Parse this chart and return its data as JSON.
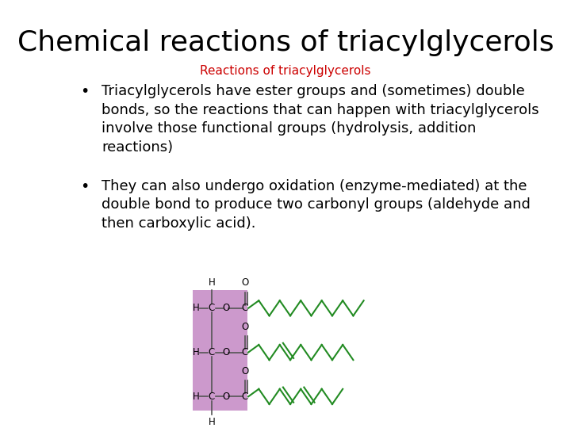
{
  "title": "Chemical reactions of triacylglycerols",
  "subtitle": "Reactions of triacylglycerols",
  "subtitle_color": "#cc0000",
  "bullet1": "Triacylglycerols have ester groups and (sometimes) double\nbonds, so the reactions that can happen with triacylglycerols\ninvolve those functional groups (hydrolysis, addition\nreactions)",
  "bullet2": "They can also undergo oxidation (enzyme-mediated) at the\ndouble bond to produce two carbonyl groups (aldehyde and\nthen carboxylic acid).",
  "bg_color": "#ffffff",
  "title_fontsize": 26,
  "subtitle_fontsize": 11,
  "body_fontsize": 13,
  "glycerol_bg": "#cc99cc",
  "chain_color": "#228B22",
  "bond_color": "#555555"
}
